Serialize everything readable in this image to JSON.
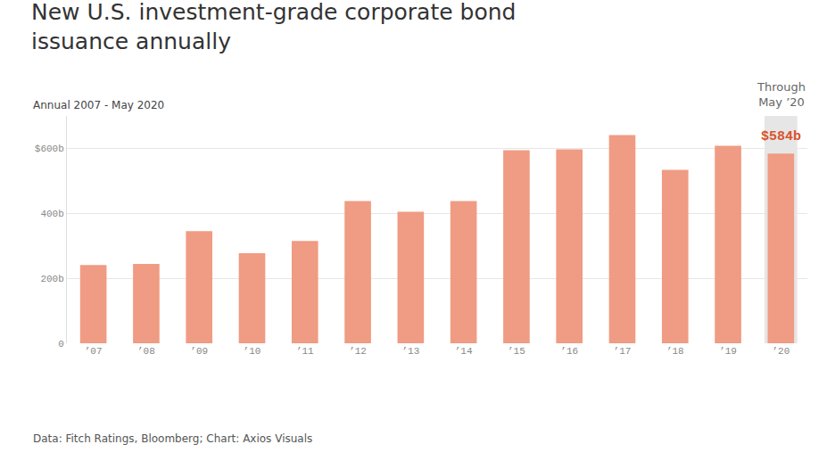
{
  "chart_data": {
    "type": "bar",
    "title": "New U.S. investment-grade corporate bond issuance annually",
    "subtitle": "Annual 2007 - May 2020",
    "source": "Data: Fitch Ratings, Bloomberg; Chart: Axios Visuals",
    "categories": [
      "’07",
      "’08",
      "’09",
      "’10",
      "’11",
      "’12",
      "’13",
      "’14",
      "’15",
      "’16",
      "’17",
      "’18",
      "’19",
      "’20"
    ],
    "values": [
      241,
      244,
      345,
      277,
      315,
      438,
      405,
      438,
      594,
      597,
      641,
      534,
      608,
      584
    ],
    "color": "#f09b83",
    "ylim": [
      0,
      700
    ],
    "yticks": [
      0,
      {
        "value": 200,
        "label": "200b"
      },
      {
        "value": 400,
        "label": "400b"
      },
      {
        "value": 600,
        "label": "$600b"
      }
    ],
    "grid": true,
    "annotations": [
      {
        "text": [
          "Through",
          "May ’20"
        ],
        "category": "’20"
      },
      {
        "text": "$584b",
        "category": "’20",
        "value": 584,
        "color": "#d9532c"
      }
    ]
  }
}
